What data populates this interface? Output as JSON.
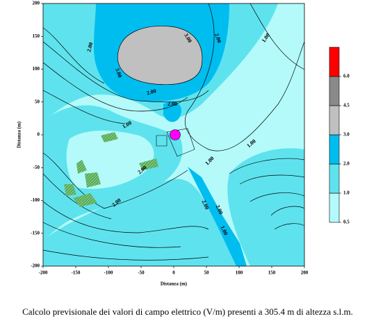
{
  "chart_data": {
    "type": "contour",
    "caption": "Calcolo previsionale dei valori di campo elettrico (V/m) presenti a 305.4 m di altezza s.l.m.",
    "xlabel": "Distanza (m)",
    "ylabel": "Distanza (m)",
    "xlim": [
      -200,
      200
    ],
    "ylim": [
      -200,
      200
    ],
    "xticks": [
      -200,
      -150,
      -100,
      -50,
      0,
      50,
      100,
      150,
      200
    ],
    "yticks": [
      -200,
      -150,
      -100,
      -50,
      0,
      50,
      100,
      150,
      200
    ],
    "colorbar": {
      "ticks": [
        {
          "value": 0.5,
          "label": "0.5"
        },
        {
          "value": 1,
          "label": "1.0"
        },
        {
          "value": 2,
          "label": "2.0"
        },
        {
          "value": 3,
          "label": "3.0"
        },
        {
          "value": 4.5,
          "label": "4.5"
        },
        {
          "value": 6,
          "label": "6.0"
        }
      ],
      "colors": [
        "#b4fafa",
        "#5ee3ee",
        "#00bdf0",
        "#c0c0c0",
        "#8a8a8a",
        "#ff0000"
      ]
    },
    "contour_labels": [
      {
        "value": 2,
        "label": "2.00"
      },
      {
        "value": 3,
        "label": "3.00"
      },
      {
        "value": 2,
        "label": "2.00"
      },
      {
        "value": 1,
        "label": "1.00"
      },
      {
        "value": 3,
        "label": "3.00"
      },
      {
        "value": 2,
        "label": "2.00"
      },
      {
        "value": 1,
        "label": "1.00"
      },
      {
        "value": 2,
        "label": "2.00"
      },
      {
        "value": 1,
        "label": "1.00"
      },
      {
        "value": 1,
        "label": "1.00"
      },
      {
        "value": 2,
        "label": "2.00"
      },
      {
        "value": 2,
        "label": "2.00"
      },
      {
        "value": 2,
        "label": "2.00"
      },
      {
        "value": 2,
        "label": "2.00"
      },
      {
        "value": 1,
        "label": "1.00"
      }
    ]
  }
}
